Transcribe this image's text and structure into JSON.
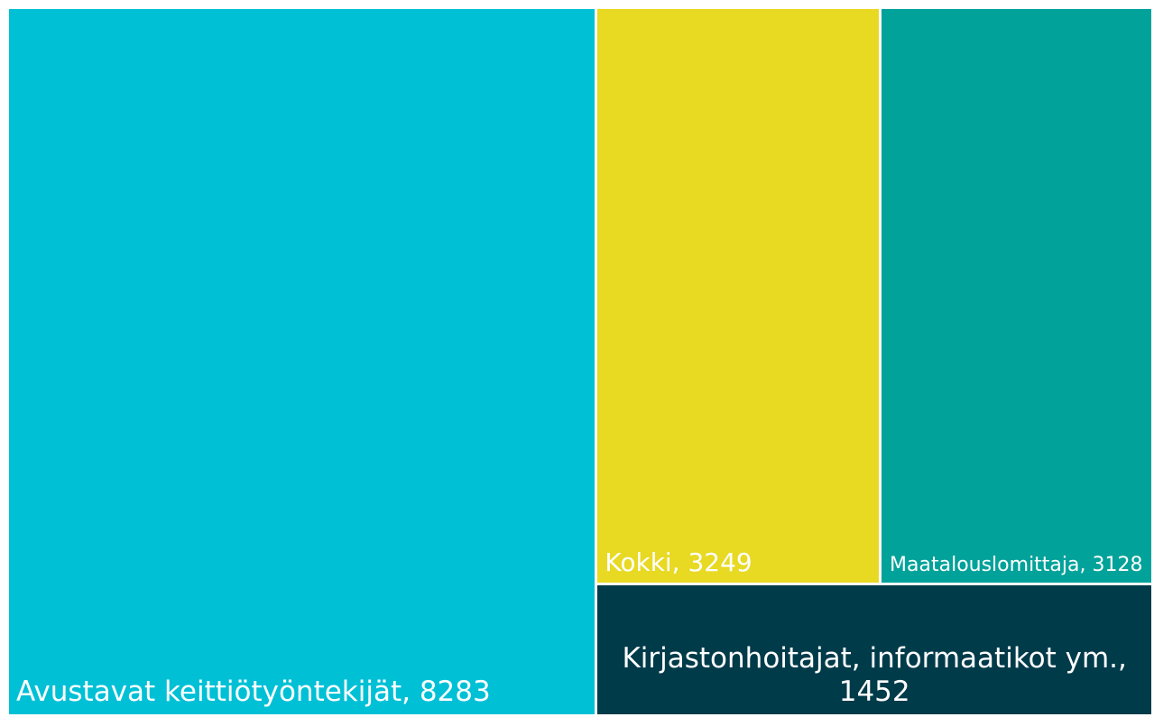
{
  "chart_data": {
    "type": "treemap",
    "labels": [
      "Avustavat keittiötyöntekijät, 8283",
      "Kokki, 3249",
      "Maatalouslomittaja, 3128",
      "Kirjastonhoitajat, informaatikot ym., 1452"
    ],
    "values": [
      8283,
      3249,
      3128,
      1452
    ],
    "colors": [
      "#00c0d6",
      "#e8d923",
      "#00a29a",
      "#003b4a"
    ]
  }
}
